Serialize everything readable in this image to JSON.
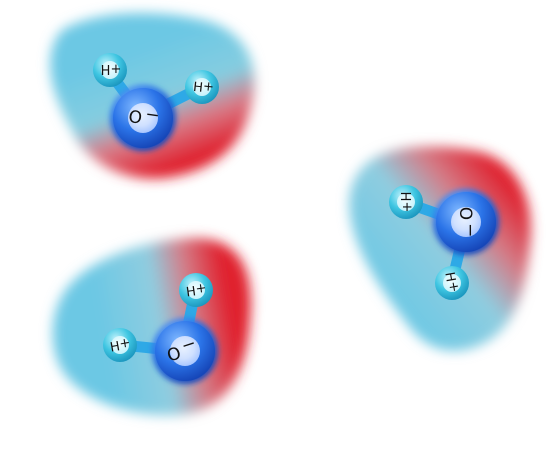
{
  "diagram": {
    "colors": {
      "positive_cloud": "#6cc8e4",
      "negative_cloud": "#e0202e",
      "hydrogen_atom": "#3fc6e2",
      "oxygen_atom": "#1f6fe0",
      "bond": "#2ea9e6",
      "background": "#ffffff"
    },
    "molecules": [
      {
        "name": "water-molecule-1",
        "oxygen": {
          "symbol": "O",
          "charge": "−"
        },
        "hydrogens": [
          {
            "symbol": "H",
            "charge": "+"
          },
          {
            "symbol": "H",
            "charge": "+"
          }
        ]
      },
      {
        "name": "water-molecule-2",
        "oxygen": {
          "symbol": "O",
          "charge": "−"
        },
        "hydrogens": [
          {
            "symbol": "H",
            "charge": "+"
          },
          {
            "symbol": "H",
            "charge": "+"
          }
        ]
      },
      {
        "name": "water-molecule-3",
        "oxygen": {
          "symbol": "O",
          "charge": "−"
        },
        "hydrogens": [
          {
            "symbol": "H",
            "charge": "+"
          },
          {
            "symbol": "H",
            "charge": "+"
          }
        ]
      }
    ]
  }
}
